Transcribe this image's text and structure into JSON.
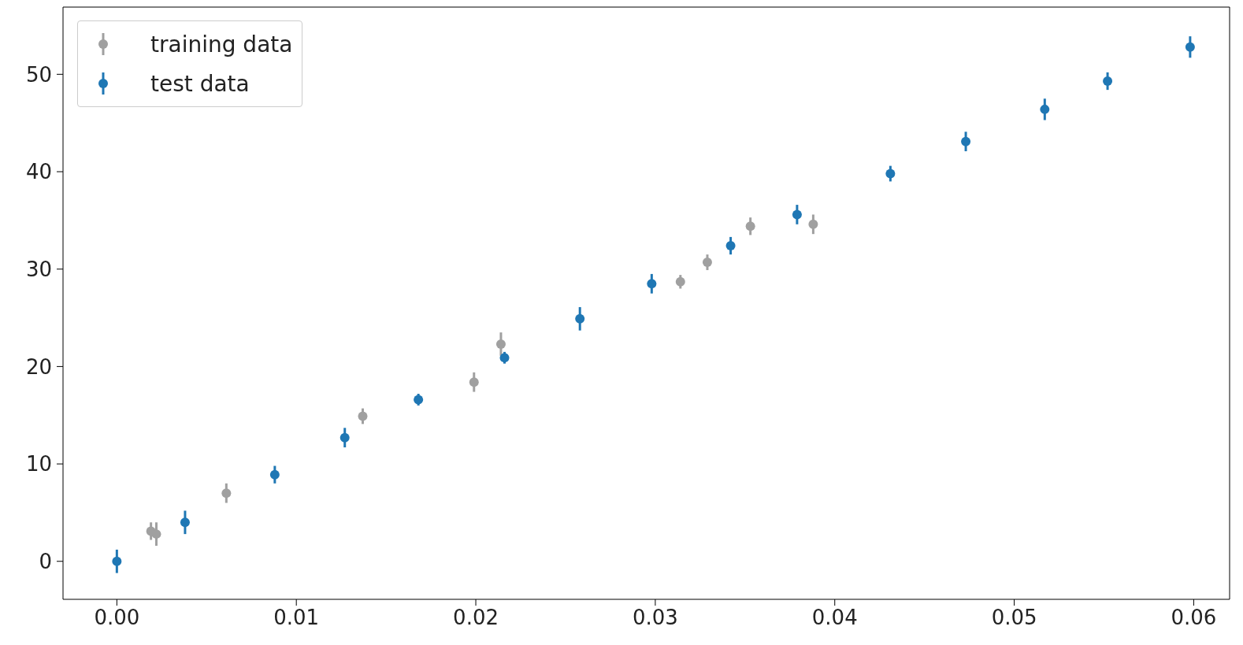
{
  "chart_data": {
    "type": "scatter",
    "xlim": [
      -0.003,
      0.062
    ],
    "ylim": [
      -3.9,
      56.9
    ],
    "xticks": [
      {
        "value": 0,
        "label": "0.00"
      },
      {
        "value": 0.01,
        "label": "0.01"
      },
      {
        "value": 0.02,
        "label": "0.02"
      },
      {
        "value": 0.03,
        "label": "0.03"
      },
      {
        "value": 0.04,
        "label": "0.04"
      },
      {
        "value": 0.05,
        "label": "0.05"
      },
      {
        "value": 0.06,
        "label": "0.06"
      }
    ],
    "yticks": [
      0,
      10,
      20,
      30,
      40,
      50
    ],
    "grid": false,
    "legend": "top left",
    "marker": "circle",
    "series": [
      {
        "name": "training data",
        "color": "#a0a0a0",
        "x": [
          0.0019,
          0.0022,
          0.0061,
          0.0137,
          0.0199,
          0.0214,
          0.0314,
          0.0329,
          0.0353,
          0.0388
        ],
        "values": [
          3.1,
          2.8,
          7.0,
          14.9,
          18.4,
          22.3,
          28.7,
          30.7,
          34.4,
          34.6
        ],
        "errors": [
          0.9,
          1.2,
          1.0,
          0.8,
          1.0,
          1.2,
          0.7,
          0.8,
          0.9,
          1.0
        ]
      },
      {
        "name": "test data",
        "color": "#1f77b4",
        "x": [
          0.0,
          0.0038,
          0.0088,
          0.0127,
          0.0168,
          0.0216,
          0.0258,
          0.0298,
          0.0342,
          0.0379,
          0.0431,
          0.0473,
          0.0517,
          0.0552,
          0.0598
        ],
        "values": [
          0.0,
          4.0,
          8.9,
          12.7,
          16.6,
          20.9,
          24.9,
          28.5,
          32.4,
          35.6,
          39.8,
          43.1,
          46.4,
          49.3,
          52.8
        ],
        "errors": [
          1.2,
          1.2,
          0.9,
          1.0,
          0.6,
          0.6,
          1.2,
          1.0,
          0.9,
          1.0,
          0.8,
          1.0,
          1.1,
          0.9,
          1.1
        ]
      }
    ]
  }
}
